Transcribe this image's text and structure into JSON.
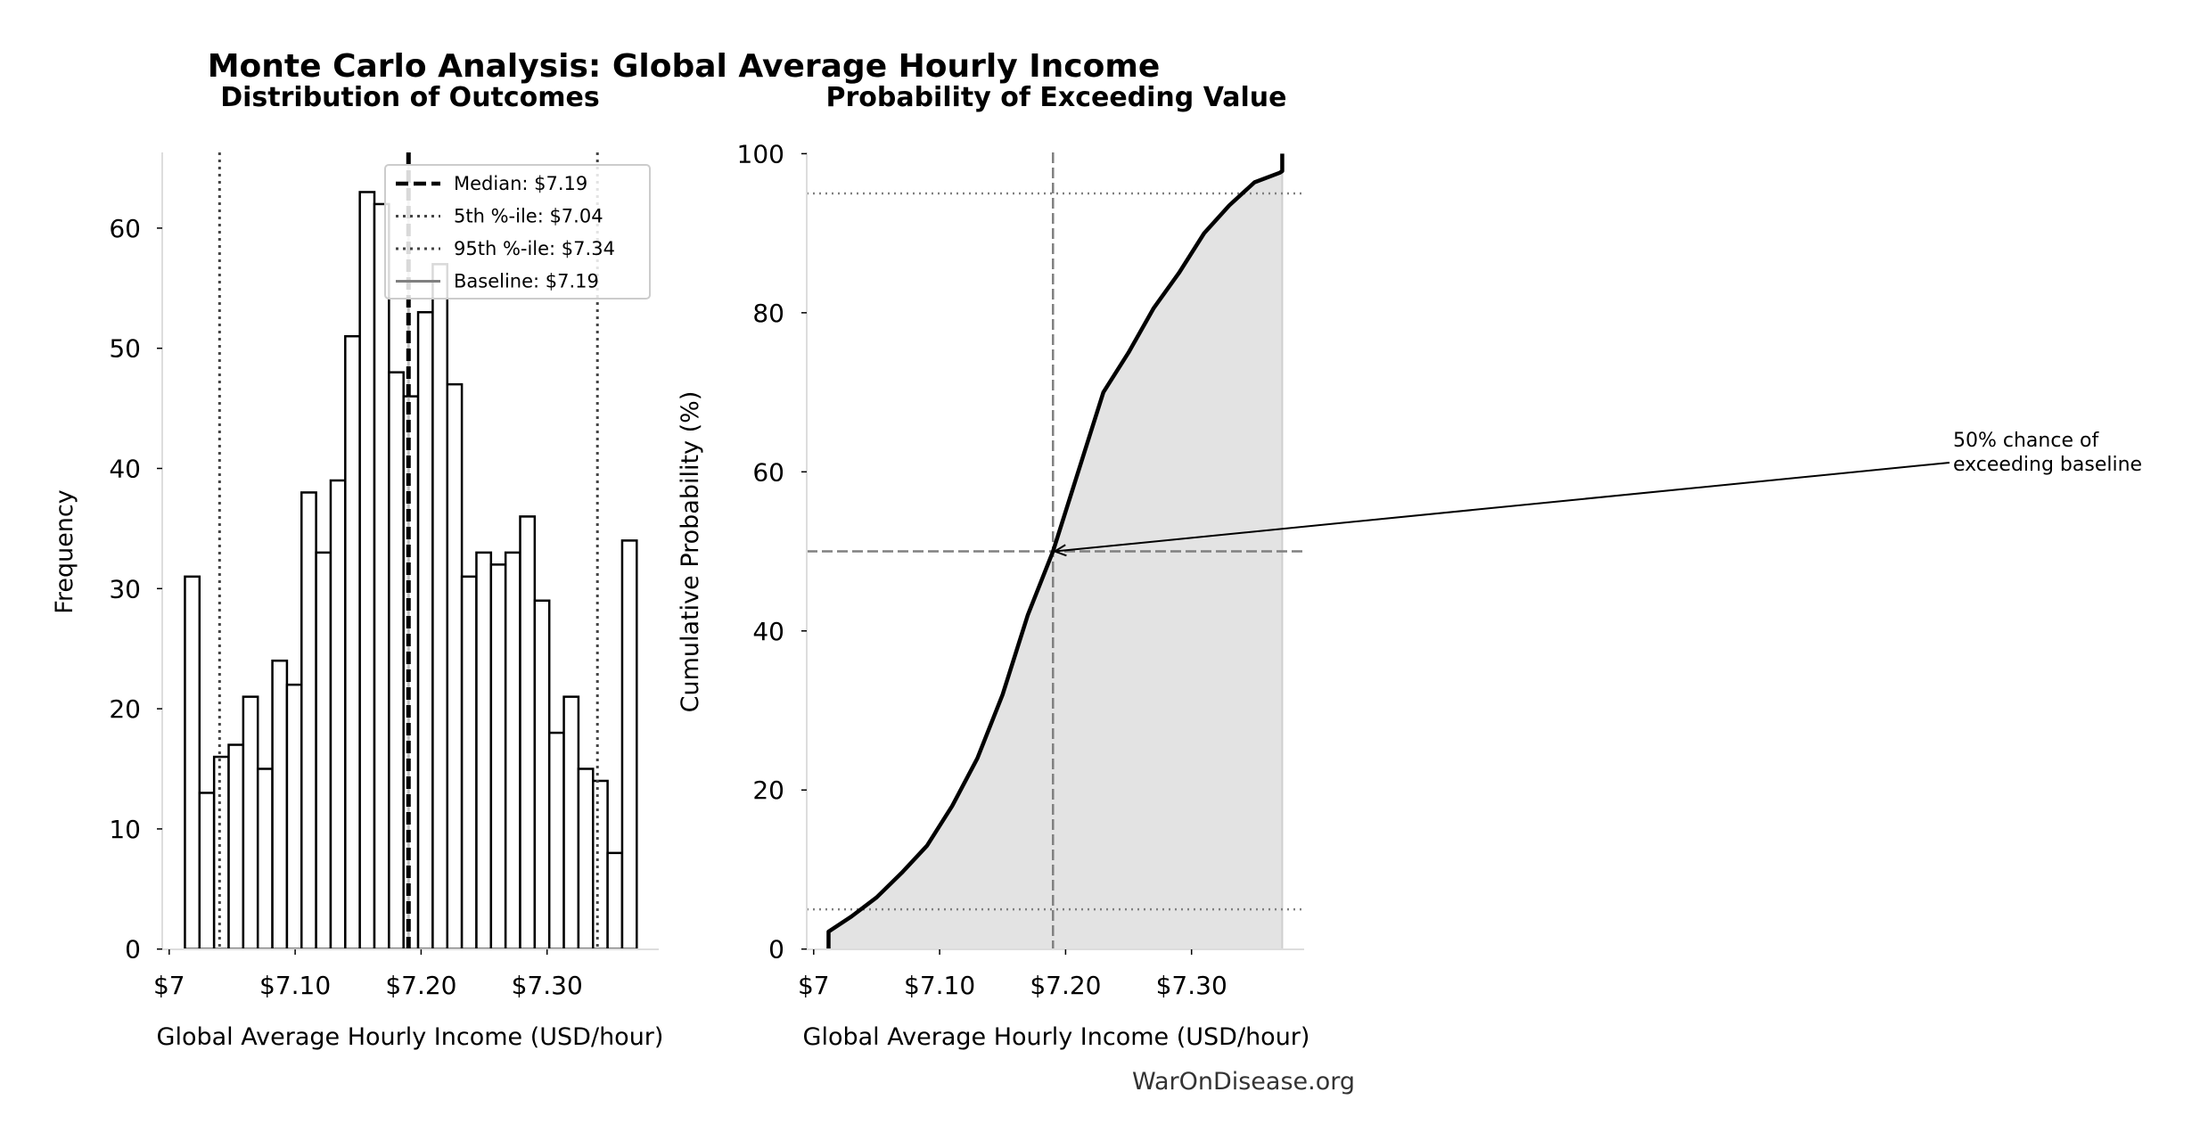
{
  "figure": {
    "title": "Monte Carlo Analysis: Global Average Hourly Income",
    "watermark": "WarOnDisease.org"
  },
  "chart_data": [
    {
      "type": "bar",
      "subtype": "histogram",
      "title": "Distribution of Outcomes",
      "xlabel": "Global Average Hourly Income (USD/hour)",
      "ylabel": "Frequency",
      "xlim": [
        6.995,
        7.385
      ],
      "ylim": [
        0,
        66
      ],
      "xticks": [
        7.0,
        7.1,
        7.2,
        7.3
      ],
      "xtick_labels": [
        "$7",
        "$7.10",
        "$7.20",
        "$7.30"
      ],
      "yticks": [
        0,
        10,
        20,
        30,
        40,
        50,
        60
      ],
      "bin_start": 7.0125,
      "bin_end": 7.3712,
      "values": [
        31,
        13,
        16,
        17,
        21,
        15,
        24,
        22,
        38,
        33,
        39,
        51,
        63,
        62,
        48,
        46,
        53,
        57,
        47,
        31,
        33,
        32,
        33,
        36,
        29,
        18,
        21,
        15,
        14,
        8,
        34
      ],
      "bar_fill": "#ffffff",
      "bar_edge": "#000000",
      "grid": false,
      "reference_lines": [
        {
          "name": "Median: $7.19",
          "x": 7.19,
          "style": "dashed",
          "color": "#000000"
        },
        {
          "name": "5th %-ile: $7.04",
          "x": 7.04,
          "style": "dotted",
          "color": "#444444"
        },
        {
          "name": "95th %-ile: $7.34",
          "x": 7.34,
          "style": "dotted",
          "color": "#444444"
        },
        {
          "name": "Baseline: $7.19",
          "x": 7.19,
          "style": "solid",
          "color": "#808080"
        }
      ],
      "legend_position": "top-right"
    },
    {
      "type": "area",
      "title": "Probability of Exceeding Value",
      "xlabel": "Global Average Hourly Income (USD/hour)",
      "ylabel": "Cumulative Probability (%)",
      "xlim": [
        6.995,
        7.39
      ],
      "ylim": [
        0,
        100
      ],
      "xticks": [
        7.0,
        7.1,
        7.2,
        7.3
      ],
      "xtick_labels": [
        "$7",
        "$7.10",
        "$7.20",
        "$7.30"
      ],
      "yticks": [
        0,
        20,
        40,
        60,
        80,
        100
      ],
      "x": [
        7.0118,
        7.0118,
        7.03,
        7.05,
        7.07,
        7.09,
        7.11,
        7.13,
        7.15,
        7.17,
        7.19,
        7.21,
        7.23,
        7.25,
        7.27,
        7.29,
        7.31,
        7.33,
        7.35,
        7.37,
        7.372,
        7.372
      ],
      "y": [
        0,
        2.2,
        4.1,
        6.5,
        9.6,
        13,
        18,
        24,
        32,
        42,
        50,
        60,
        70,
        75,
        80.6,
        85,
        90,
        93.5,
        96.4,
        97.6,
        97.8,
        100
      ],
      "fill_color": "#e3e3e3",
      "line_color": "#000000",
      "grid": false,
      "reference_lines": [
        {
          "axis": "x",
          "value": 7.19,
          "style": "dashed"
        },
        {
          "axis": "y",
          "value": 50,
          "style": "dashed"
        },
        {
          "axis": "y",
          "value": 5,
          "style": "dotted"
        },
        {
          "axis": "y",
          "value": 95,
          "style": "dotted"
        }
      ],
      "annotation": {
        "lines": [
          "50% chance of",
          "exceeding baseline"
        ],
        "point": [
          7.19,
          50
        ]
      }
    }
  ]
}
